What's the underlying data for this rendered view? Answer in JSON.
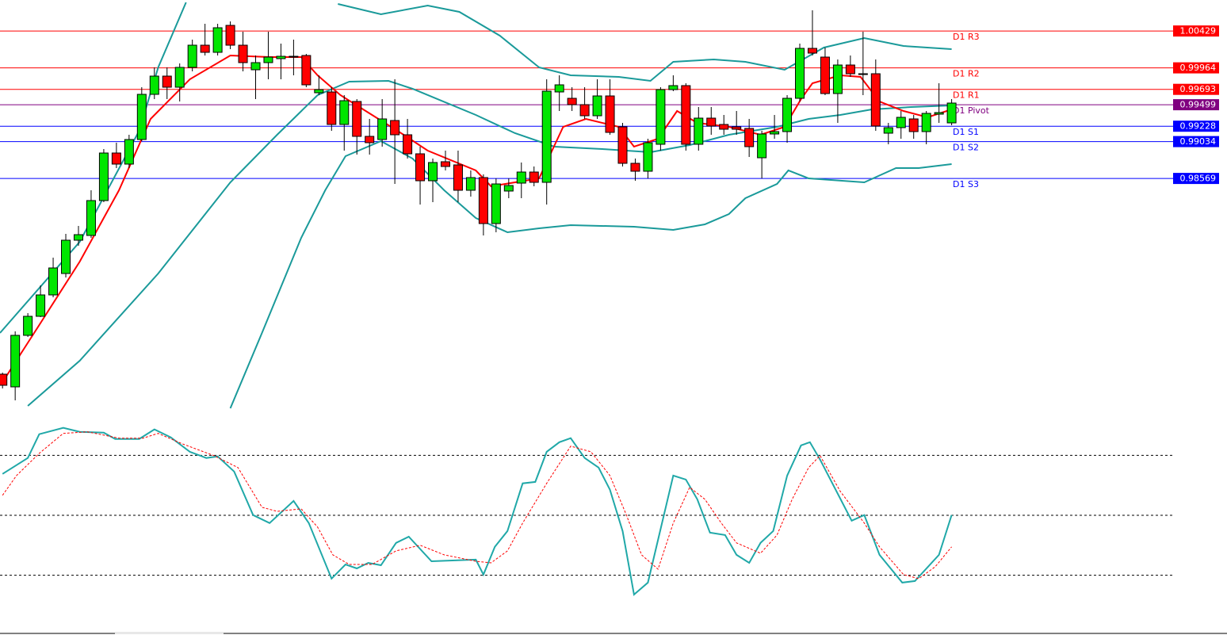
{
  "chart_data": [
    {
      "type": "candlestick",
      "xlim": [
        -0.2,
        92.5
      ],
      "ylim": [
        0.9567,
        1.0082
      ],
      "up_color": "#00e600",
      "down_color": "#ff0000",
      "open": [
        0.961,
        0.9594,
        0.9659,
        0.9683,
        0.971,
        0.9737,
        0.9779,
        0.9785,
        0.9829,
        0.9889,
        0.9875,
        0.9906,
        0.9963,
        0.9986,
        0.9972,
        0.9997,
        1.0025,
        1.0016,
        1.005,
        1.0025,
        0.9994,
        1.0003,
        1.0008,
        1.001,
        1.0012,
        0.9965,
        0.9966,
        0.9925,
        0.9954,
        0.991,
        0.9906,
        0.993,
        0.9912,
        0.9888,
        0.9854,
        0.9878,
        0.9874,
        0.9842,
        0.9858,
        0.98,
        0.9841,
        0.9851,
        0.9865,
        0.9852,
        0.9966,
        0.9958,
        0.995,
        0.9936,
        0.9961,
        0.9922,
        0.9876,
        0.9866,
        0.99,
        0.9969,
        0.9974,
        0.99,
        0.9933,
        0.9925,
        0.9922,
        0.992,
        0.9883,
        0.9913,
        0.9916,
        0.9958,
        1.0021,
        1.001,
        0.9964,
        1.0,
        0.9988,
        0.9989,
        0.9914,
        0.9921,
        0.9932,
        0.9916,
        0.9938,
        0.9927
      ],
      "high": [
        0.9612,
        0.9664,
        0.9687,
        0.9722,
        0.9757,
        0.9787,
        0.9797,
        0.9842,
        0.9894,
        0.9902,
        0.9912,
        0.9972,
        0.9997,
        0.9997,
        1.0002,
        1.0032,
        1.0052,
        1.0052,
        1.0055,
        1.0042,
        1.0012,
        1.0042,
        1.0027,
        1.0032,
        1.0014,
        0.9987,
        0.9972,
        0.9962,
        0.9957,
        0.9932,
        0.9957,
        0.9982,
        0.9932,
        0.9897,
        0.9882,
        0.9892,
        0.9892,
        0.9867,
        0.9862,
        0.9857,
        0.9857,
        0.9877,
        0.9872,
        0.9982,
        0.9987,
        0.9972,
        0.9972,
        0.9982,
        0.9982,
        0.9927,
        0.9882,
        0.9907,
        0.9972,
        0.9987,
        0.9977,
        0.9947,
        0.9947,
        0.9937,
        0.9942,
        0.9932,
        0.9917,
        0.9937,
        0.9962,
        1.0027,
        1.0069,
        1.0022,
        1.0007,
        1.0012,
        1.0042,
        1.0007,
        0.9927,
        0.9942,
        0.9937,
        0.9942,
        0.9977,
        0.9957
      ],
      "low": [
        0.9592,
        0.9577,
        0.9657,
        0.9682,
        0.9707,
        0.9732,
        0.9772,
        0.9782,
        0.9827,
        0.987,
        0.987,
        0.9904,
        0.9957,
        0.9957,
        0.9954,
        0.9992,
        1.0012,
        1.0012,
        1.002,
        0.9992,
        0.9957,
        0.9982,
        0.9982,
        0.9987,
        0.9972,
        0.9962,
        0.9917,
        0.9892,
        0.9887,
        0.9887,
        0.9897,
        0.985,
        0.9882,
        0.9824,
        0.9827,
        0.9867,
        0.9827,
        0.9834,
        0.9785,
        0.9789,
        0.9832,
        0.9832,
        0.9847,
        0.9824,
        0.9942,
        0.9942,
        0.9932,
        0.9932,
        0.9912,
        0.9872,
        0.9854,
        0.9857,
        0.9892,
        0.9967,
        0.9892,
        0.9892,
        0.9912,
        0.9912,
        0.9912,
        0.9884,
        0.9857,
        0.9907,
        0.9902,
        0.9954,
        1.0012,
        0.9962,
        0.9927,
        0.9985,
        0.9962,
        0.9917,
        0.99,
        0.9907,
        0.9907,
        0.99,
        0.9927,
        0.9924
      ],
      "close": [
        0.9596,
        0.9659,
        0.9683,
        0.971,
        0.9744,
        0.9779,
        0.9786,
        0.9829,
        0.9889,
        0.9875,
        0.9906,
        0.9963,
        0.9986,
        0.9972,
        0.9997,
        1.0025,
        1.0016,
        1.0047,
        1.0025,
        1.0003,
        1.0003,
        1.001,
        1.0011,
        1.0011,
        0.9975,
        0.9969,
        0.9925,
        0.9955,
        0.991,
        0.9902,
        0.9932,
        0.9912,
        0.9888,
        0.9854,
        0.9877,
        0.9872,
        0.9842,
        0.9858,
        0.98,
        0.985,
        0.9848,
        0.9865,
        0.9852,
        0.9967,
        0.9975,
        0.995,
        0.9936,
        0.9961,
        0.9915,
        0.9876,
        0.9866,
        0.9902,
        0.9969,
        0.9974,
        0.99,
        0.9933,
        0.9923,
        0.9919,
        0.9919,
        0.9897,
        0.9913,
        0.9916,
        0.9958,
        1.0021,
        1.0015,
        0.9964,
        1.0,
        0.9989,
        0.9989,
        0.9923,
        0.9921,
        0.9934,
        0.9916,
        0.9939,
        0.994,
        0.9952
      ],
      "overlays": [
        {
          "type": "line",
          "color": "#1a9a9a",
          "x": [
            -0.2,
            6.1,
            10.8,
            12.3,
            14.5
          ],
          "values": [
            0.9662,
            0.9777,
            0.9917,
            0.9997,
            1.0079
          ]
        },
        {
          "type": "line",
          "color": "#1a9a9a",
          "x": [
            26.5,
            29.9,
            33.6,
            36.1,
            39.3,
            42.4,
            44.9,
            48.7,
            51.2,
            53.0,
            56.2,
            58.7,
            61.8,
            64.9,
            68.1,
            71.2,
            75.0
          ],
          "values": [
            1.0077,
            1.0064,
            1.0075,
            1.0067,
            1.0037,
            0.9997,
            0.9987,
            0.9985,
            0.998,
            1.0004,
            1.0007,
            1.0004,
            0.9994,
            1.0022,
            1.0034,
            1.0024,
            1.002
          ]
        },
        {
          "type": "line",
          "color": "#1a9a9a",
          "x": [
            2.0,
            6.1,
            12.3,
            18.0,
            21.7,
            24.9,
            27.4,
            30.5,
            32.4,
            37.4,
            40.5,
            43.6,
            47.4,
            51.2,
            54.3,
            57.4,
            61.2,
            63.7,
            66.2,
            68.7,
            71.8,
            75.0
          ],
          "values": [
            0.957,
            0.9627,
            0.9737,
            0.9852,
            0.9912,
            0.9962,
            0.9979,
            0.998,
            0.997,
            0.9937,
            0.9914,
            0.9897,
            0.9894,
            0.989,
            0.9899,
            0.9912,
            0.9922,
            0.9932,
            0.9937,
            0.9944,
            0.9947,
            0.9949
          ]
        },
        {
          "type": "line",
          "color": "#1a9a9a",
          "x": [
            18.0,
            20.5,
            23.6,
            25.5,
            27.1,
            29.9,
            32.4,
            34.9,
            37.4,
            39.9,
            42.4,
            44.9,
            49.9,
            53.0,
            55.5,
            57.4,
            58.7,
            61.2,
            62.1,
            63.7,
            68.1,
            70.6,
            72.4,
            75.0
          ],
          "values": [
            0.9567,
            0.9662,
            0.9782,
            0.9842,
            0.9885,
            0.9904,
            0.9882,
            0.9842,
            0.9807,
            0.9789,
            0.9794,
            0.9798,
            0.9796,
            0.9792,
            0.9799,
            0.9812,
            0.9832,
            0.985,
            0.9867,
            0.9857,
            0.9852,
            0.987,
            0.987,
            0.9875
          ]
        },
        {
          "type": "line",
          "color": "#ff0000",
          "x": [
            0,
            2.9,
            6.1,
            9.2,
            11.7,
            14.8,
            18.0,
            21.1,
            23.6,
            24.9,
            26.7,
            29.2,
            31.7,
            33.6,
            37.4,
            38.6,
            42.4,
            44.3,
            46.1,
            48.7,
            49.9,
            51.8,
            53.3,
            54.9,
            57.4,
            59.9,
            61.8,
            63.1,
            64.0,
            66.2,
            67.8,
            69.3,
            71.2,
            73.1,
            75.0
          ],
          "values": [
            0.96,
            0.9672,
            0.9752,
            0.9842,
            0.9932,
            0.9982,
            1.0012,
            1.001,
            1.001,
            0.9987,
            0.9962,
            0.9937,
            0.9912,
            0.9892,
            0.9867,
            0.9847,
            0.9857,
            0.9922,
            0.9932,
            0.9922,
            0.9897,
            0.9907,
            0.9942,
            0.9927,
            0.9922,
            0.9912,
            0.9922,
            0.9957,
            0.9977,
            0.9987,
            0.9985,
            0.9954,
            0.9942,
            0.9934,
            0.9944
          ]
        }
      ],
      "levels": [
        {
          "label": "D1 R3",
          "value": 1.00429,
          "color": "#ff0000"
        },
        {
          "label": "D1 R2",
          "value": 0.99964,
          "color": "#ff0000"
        },
        {
          "label": "D1 R1",
          "value": 0.99693,
          "color": "#ff0000"
        },
        {
          "label": "D1 Pivot",
          "value": 0.99499,
          "color": "#800080"
        },
        {
          "label": "D1 S1",
          "value": 0.99228,
          "color": "#0000ff"
        },
        {
          "label": "D1 S2",
          "value": 0.99034,
          "color": "#0000ff"
        },
        {
          "label": "D1 S3",
          "value": 0.98569,
          "color": "#0000ff"
        }
      ]
    },
    {
      "type": "line",
      "xlim": [
        -0.2,
        92.5
      ],
      "ylim": [
        0,
        100
      ],
      "levels": [
        20,
        50,
        80
      ],
      "series": [
        {
          "color": "#20a8a8",
          "x": [
            0,
            2.0,
            2.9,
            4.8,
            6.1,
            8.0,
            8.9,
            10.8,
            12.0,
            13.3,
            14.8,
            16.1,
            17.0,
            18.3,
            19.8,
            21.1,
            23.0,
            24.2,
            26.0,
            27.1,
            28.0,
            28.9,
            29.9,
            31.1,
            32.1,
            33.9,
            37.4,
            38.0,
            38.9,
            39.9,
            41.1,
            42.1,
            43.0,
            44.0,
            44.9,
            46.0,
            47.1,
            48.0,
            49.0,
            49.9,
            51.0,
            53.0,
            54.0,
            54.9,
            55.9,
            57.1,
            58.0,
            59.0,
            59.9,
            60.9,
            62.0,
            63.1,
            63.8,
            64.6,
            67.1,
            68.1,
            69.3,
            71.1,
            72.1,
            74.0,
            75.0
          ],
          "values": [
            70.7,
            78.7,
            90.6,
            93.8,
            91.8,
            91.4,
            88.2,
            88.2,
            93.0,
            89.0,
            81.8,
            78.7,
            79.5,
            71.9,
            50.1,
            46.1,
            57.2,
            46.1,
            18.3,
            25.4,
            23.4,
            26.2,
            25.0,
            36.2,
            39.3,
            27.0,
            27.8,
            20.3,
            34.2,
            42.1,
            66.0,
            66.7,
            81.8,
            86.6,
            88.6,
            78.7,
            73.9,
            62.8,
            42.1,
            10.3,
            16.3,
            69.9,
            67.9,
            58.0,
            41.3,
            40.1,
            30.2,
            26.2,
            36.2,
            42.1,
            69.9,
            85.0,
            86.6,
            77.9,
            47.3,
            50.1,
            30.2,
            16.3,
            17.1,
            30.2,
            50.1
          ]
        },
        {
          "color": "#ff0000",
          "dashed": true,
          "x": [
            0,
            1.1,
            2.9,
            4.8,
            6.7,
            9.2,
            11.1,
            12.3,
            14.2,
            16.7,
            18.6,
            20.5,
            21.7,
            23.6,
            24.9,
            26.1,
            27.4,
            29.2,
            31.1,
            33.0,
            34.9,
            37.4,
            38.6,
            39.9,
            41.1,
            43.0,
            44.9,
            46.5,
            48.0,
            49.3,
            50.5,
            51.8,
            53.0,
            54.3,
            55.5,
            56.8,
            58.0,
            59.9,
            61.2,
            62.4,
            63.7,
            64.6,
            66.2,
            68.1,
            69.3,
            71.2,
            72.4,
            73.7,
            75.0
          ],
          "values": [
            60.0,
            69.9,
            81.0,
            91.0,
            91.8,
            88.6,
            88.6,
            91.0,
            85.8,
            79.9,
            73.9,
            54.0,
            52.0,
            53.2,
            44.1,
            30.2,
            25.4,
            25.4,
            32.2,
            35.0,
            30.2,
            27.0,
            26.2,
            32.2,
            46.1,
            66.0,
            84.6,
            81.8,
            69.9,
            50.1,
            30.2,
            23.0,
            46.1,
            64.0,
            58.0,
            46.1,
            36.2,
            31.0,
            40.1,
            58.0,
            73.9,
            79.9,
            62.0,
            46.1,
            34.2,
            20.3,
            18.3,
            24.2,
            34.2
          ]
        }
      ]
    }
  ]
}
